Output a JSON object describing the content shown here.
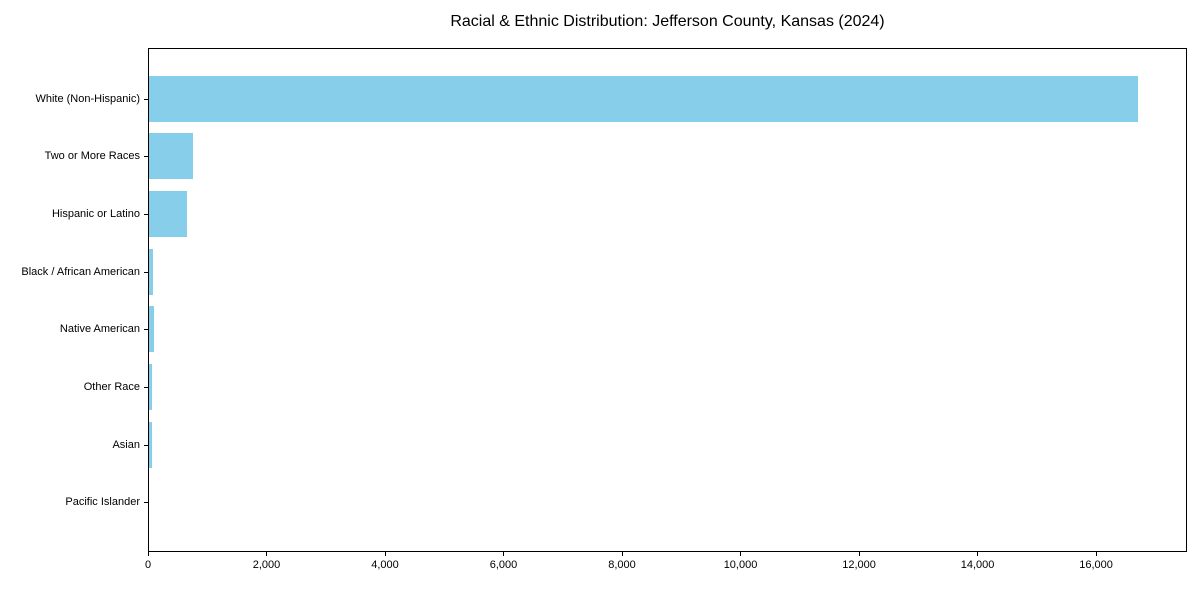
{
  "figure": {
    "background_color": "#ffffff",
    "axis_color": "#000000",
    "text_color": "#000000"
  },
  "chart_data": {
    "type": "bar",
    "orientation": "horizontal",
    "title": "Racial & Ethnic Distribution: Jefferson County, Kansas (2024)",
    "xlabel": "",
    "ylabel": "",
    "categories": [
      "White (Non-Hispanic)",
      "Two or More Races",
      "Hispanic or Latino",
      "Black / African American",
      "Native American",
      "Other Race",
      "Asian",
      "Pacific Islander"
    ],
    "values": [
      16700,
      760,
      655,
      90,
      105,
      60,
      70,
      10
    ],
    "bar_color": "#87CEEB",
    "xlim": [
      0,
      17535
    ],
    "xticks": [
      0,
      2000,
      4000,
      6000,
      8000,
      10000,
      12000,
      14000,
      16000
    ],
    "xtick_labels": [
      "0",
      "2,000",
      "4,000",
      "6,000",
      "8,000",
      "10,000",
      "12,000",
      "14,000",
      "16,000"
    ],
    "grid": false,
    "legend_position": "none"
  }
}
